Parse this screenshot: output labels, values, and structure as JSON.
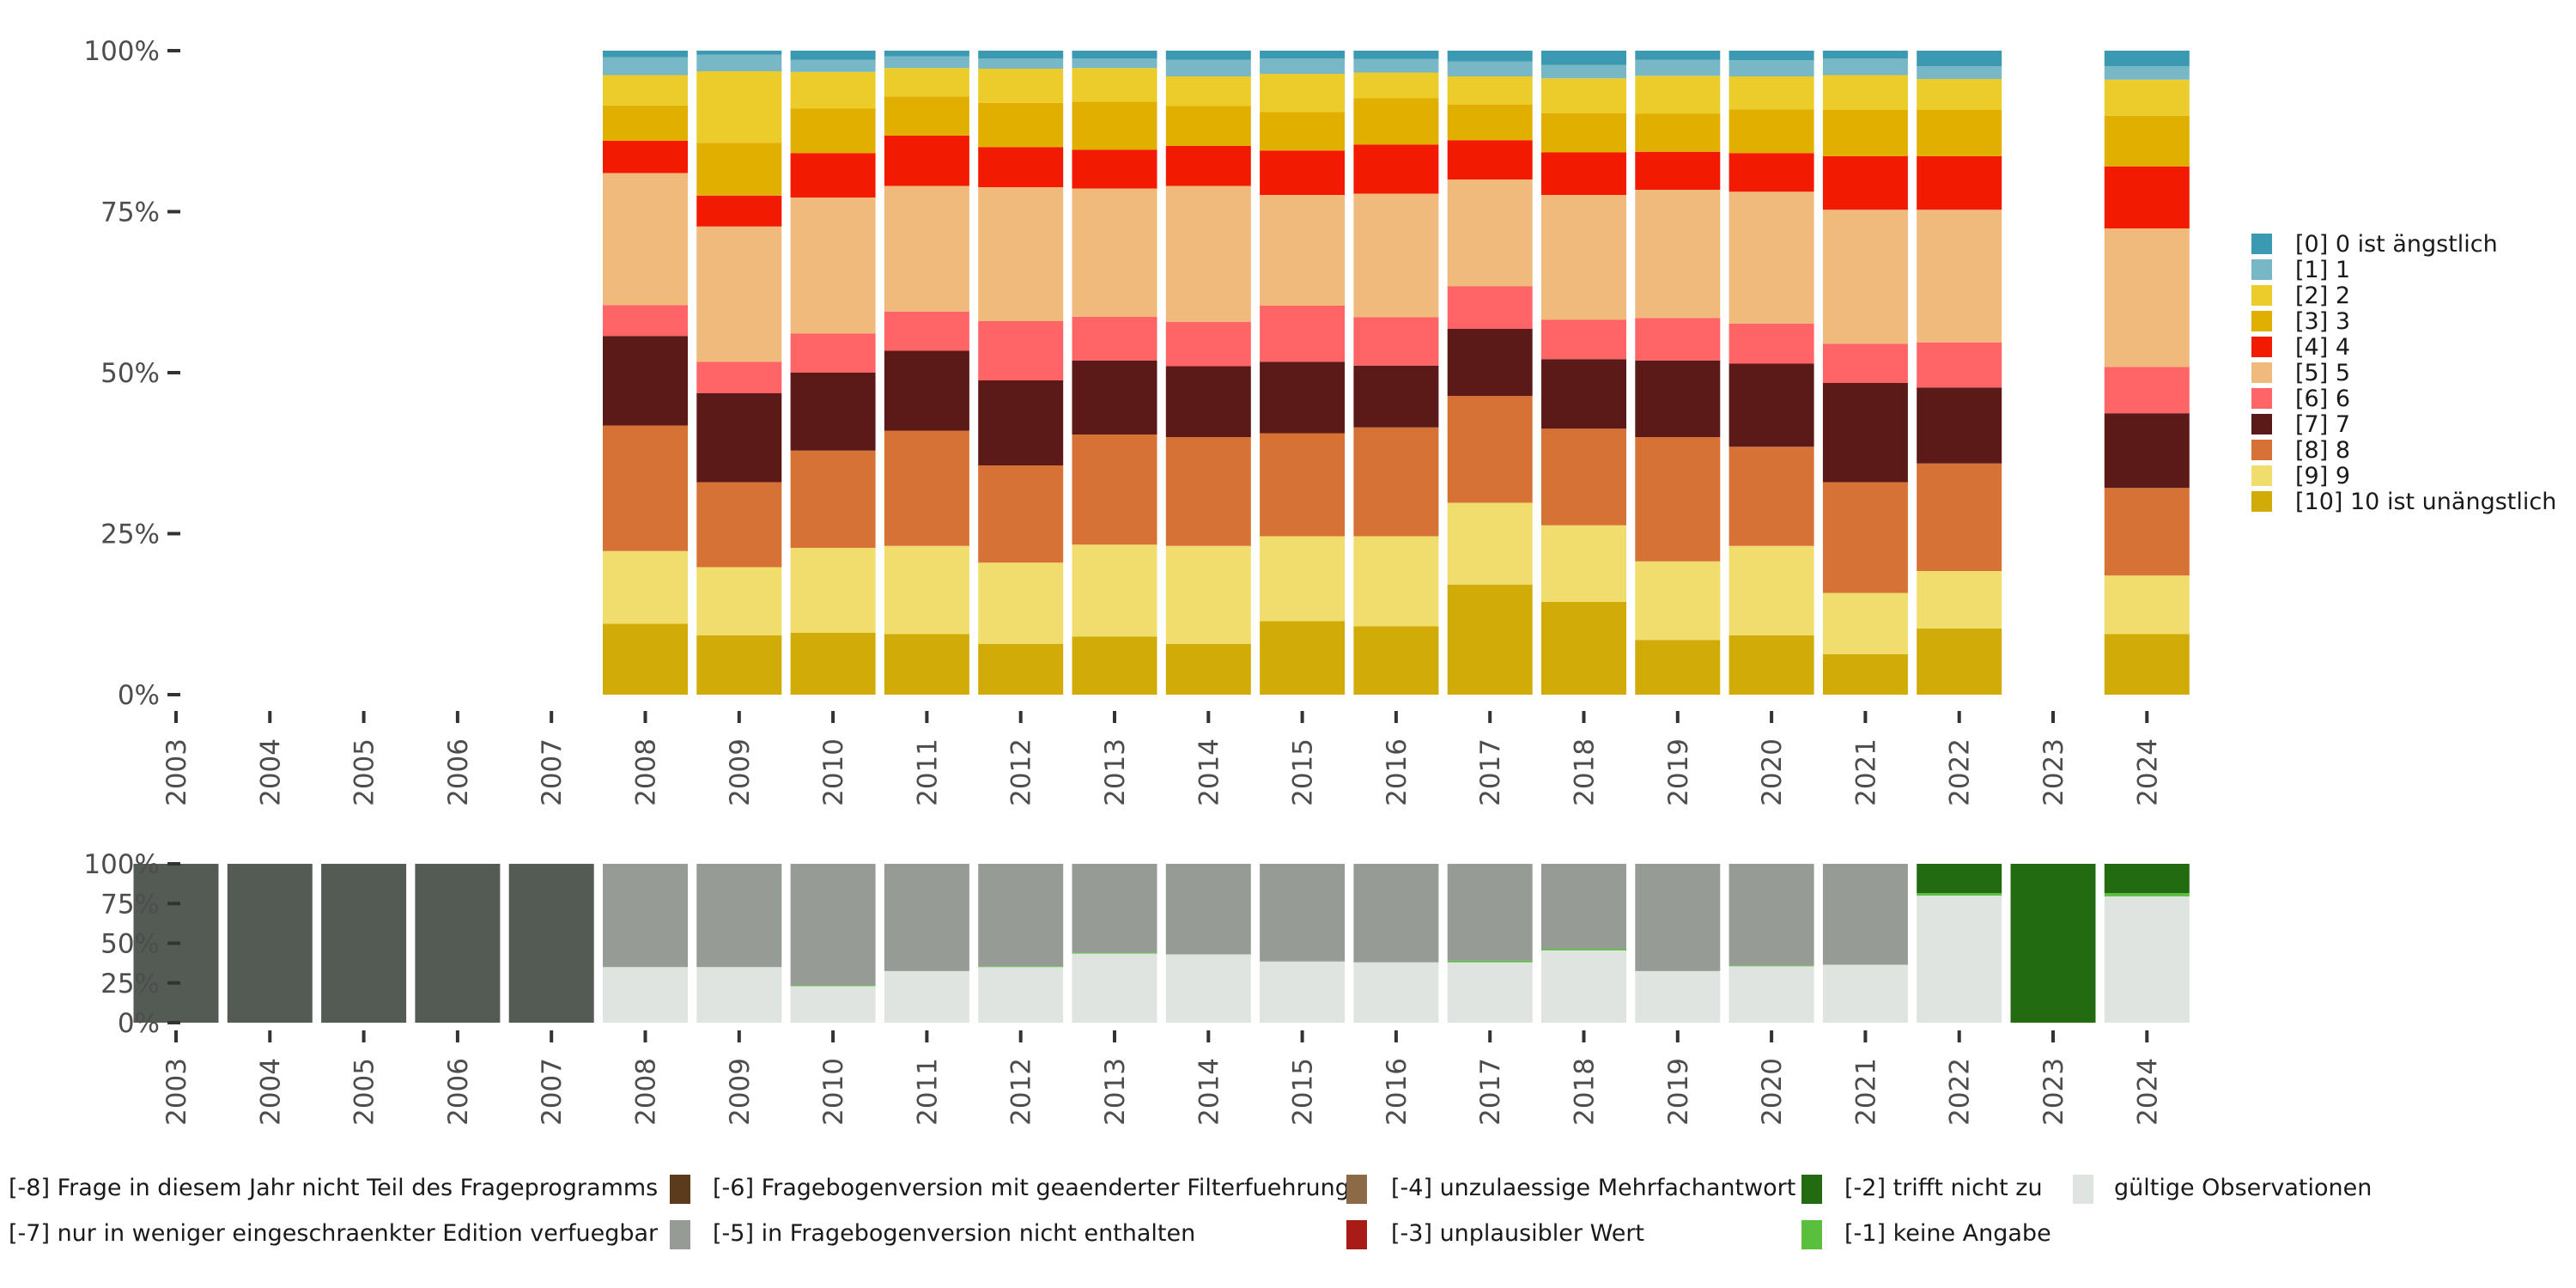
{
  "chart_data": [
    {
      "type": "bar",
      "stacked": true,
      "normalized": true,
      "title": "",
      "xlabel": "",
      "ylabel": "",
      "ylim": [
        0,
        100
      ],
      "y_ticks": [
        "0%",
        "25%",
        "50%",
        "75%",
        "100%"
      ],
      "grid": false,
      "legend_position": "right",
      "categories": [
        "2003",
        "2004",
        "2005",
        "2006",
        "2007",
        "2008",
        "2009",
        "2010",
        "2011",
        "2012",
        "2013",
        "2014",
        "2015",
        "2016",
        "2017",
        "2018",
        "2019",
        "2020",
        "2021",
        "2022",
        "2023",
        "2024"
      ],
      "series": [
        {
          "name": "[0] 0 ist ängstlich",
          "color": "#3B9AB2",
          "values": [
            null,
            null,
            null,
            null,
            null,
            1.0,
            0.6,
            1.4,
            0.9,
            1.2,
            1.2,
            1.4,
            1.2,
            1.3,
            1.7,
            2.2,
            1.4,
            1.5,
            1.2,
            2.4,
            null,
            2.4
          ]
        },
        {
          "name": "[1] 1",
          "color": "#78B7C5",
          "values": [
            null,
            null,
            null,
            null,
            null,
            2.8,
            2.6,
            1.9,
            1.8,
            1.6,
            1.5,
            2.6,
            2.4,
            2.1,
            2.3,
            2.1,
            2.5,
            2.5,
            2.6,
            2.0,
            null,
            2.1
          ]
        },
        {
          "name": "[2] 2",
          "color": "#EBCC2A",
          "values": [
            null,
            null,
            null,
            null,
            null,
            4.7,
            11.1,
            5.7,
            4.4,
            5.3,
            5.2,
            4.6,
            5.9,
            4.0,
            4.4,
            5.4,
            5.9,
            5.1,
            5.4,
            4.8,
            null,
            5.6
          ]
        },
        {
          "name": "[3] 3",
          "color": "#E1AF00",
          "values": [
            null,
            null,
            null,
            null,
            null,
            5.5,
            8.2,
            6.9,
            6.1,
            6.9,
            7.5,
            6.2,
            6.0,
            7.2,
            5.5,
            6.1,
            5.9,
            6.8,
            7.2,
            7.2,
            null,
            7.9
          ]
        },
        {
          "name": "[4] 4",
          "color": "#F21A00",
          "values": [
            null,
            null,
            null,
            null,
            null,
            5.0,
            4.8,
            6.9,
            7.8,
            6.2,
            6.0,
            6.2,
            6.9,
            7.6,
            6.1,
            6.6,
            5.9,
            6.0,
            8.3,
            8.3,
            null,
            9.6
          ]
        },
        {
          "name": "[5] 5",
          "color": "#F0BA7D",
          "values": [
            null,
            null,
            null,
            null,
            null,
            20.5,
            21.0,
            21.1,
            19.5,
            20.8,
            19.9,
            21.1,
            17.2,
            19.2,
            16.6,
            19.4,
            19.9,
            20.5,
            20.8,
            20.6,
            null,
            21.5
          ]
        },
        {
          "name": "[6] 6",
          "color": "#FF6466",
          "values": [
            null,
            null,
            null,
            null,
            null,
            4.8,
            4.9,
            6.1,
            6.1,
            9.2,
            6.8,
            6.9,
            8.7,
            7.5,
            6.6,
            6.1,
            6.6,
            6.2,
            6.1,
            7.0,
            null,
            7.2
          ]
        },
        {
          "name": "[7] 7",
          "color": "#5B1A18",
          "values": [
            null,
            null,
            null,
            null,
            null,
            13.9,
            13.8,
            12.1,
            12.4,
            13.2,
            11.5,
            11.0,
            11.1,
            9.6,
            10.4,
            10.8,
            11.9,
            12.9,
            15.4,
            11.8,
            null,
            11.6
          ]
        },
        {
          "name": "[8] 8",
          "color": "#D67236",
          "values": [
            null,
            null,
            null,
            null,
            null,
            19.5,
            13.2,
            15.1,
            17.9,
            15.1,
            17.1,
            16.9,
            16.0,
            16.9,
            16.6,
            15.0,
            19.3,
            15.4,
            17.2,
            16.7,
            null,
            13.6
          ]
        },
        {
          "name": "[9] 9",
          "color": "#F1DD6E",
          "values": [
            null,
            null,
            null,
            null,
            null,
            11.3,
            10.6,
            13.2,
            13.7,
            12.6,
            14.3,
            15.2,
            13.2,
            14.0,
            12.7,
            11.9,
            12.2,
            13.9,
            9.5,
            8.9,
            null,
            9.1
          ]
        },
        {
          "name": "[10] 10 ist unängstlich",
          "color": "#D1AB07",
          "values": [
            null,
            null,
            null,
            null,
            null,
            11.0,
            9.2,
            9.6,
            9.4,
            7.9,
            9.0,
            7.9,
            11.4,
            10.6,
            17.1,
            14.4,
            8.5,
            9.2,
            6.3,
            10.3,
            null,
            9.4
          ]
        }
      ]
    },
    {
      "type": "bar",
      "stacked": true,
      "normalized": true,
      "title": "",
      "xlabel": "",
      "ylabel": "",
      "ylim": [
        0,
        100
      ],
      "y_ticks": [
        "0%",
        "25%",
        "50%",
        "75%",
        "100%"
      ],
      "grid": false,
      "legend_position": "bottom",
      "categories": [
        "2003",
        "2004",
        "2005",
        "2006",
        "2007",
        "2008",
        "2009",
        "2010",
        "2011",
        "2012",
        "2013",
        "2014",
        "2015",
        "2016",
        "2017",
        "2018",
        "2019",
        "2020",
        "2021",
        "2022",
        "2023",
        "2024"
      ],
      "series": [
        {
          "name": "[-8] Frage in diesem Jahr nicht Teil des Frageprogramms",
          "color": "#545B55",
          "values": [
            100,
            100,
            100,
            100,
            100,
            0,
            0,
            0,
            0,
            0,
            0,
            0,
            0,
            0,
            0,
            0,
            0,
            0,
            0,
            0,
            0,
            0
          ]
        },
        {
          "name": "[-7] nur in weniger eingeschraenkter Edition verfuegbar",
          "color": "#979B95",
          "values": [
            0,
            0,
            0,
            0,
            0,
            65,
            65,
            76.5,
            67.5,
            64.5,
            56,
            57,
            61.5,
            62,
            61,
            53.5,
            67.5,
            64,
            63.5,
            0,
            0,
            0
          ]
        },
        {
          "name": "[-6] Fragebogenversion mit geaenderter Filterfuehrung",
          "color": "#5C3A1C",
          "values": [
            0,
            0,
            0,
            0,
            0,
            0,
            0,
            0,
            0,
            0,
            0,
            0,
            0,
            0,
            0,
            0,
            0,
            0,
            0,
            0,
            0,
            0
          ]
        },
        {
          "name": "[-5] in Fragebogenversion nicht enthalten",
          "color": "#979B95",
          "values": [
            0,
            0,
            0,
            0,
            0,
            0,
            0,
            0,
            0,
            0,
            0,
            0,
            0,
            0,
            0,
            0,
            0,
            0,
            0,
            0,
            0,
            0
          ]
        },
        {
          "name": "[-4] unzulaessige Mehrfachantwort",
          "color": "#8C6A48",
          "values": [
            0,
            0,
            0,
            0,
            0,
            0,
            0,
            0,
            0,
            0,
            0,
            0,
            0,
            0,
            0,
            0,
            0,
            0,
            0,
            0,
            0,
            0
          ]
        },
        {
          "name": "[-3] unplausibler Wert",
          "color": "#A81B16",
          "values": [
            0,
            0,
            0,
            0,
            0,
            0,
            0,
            0,
            0,
            0,
            0,
            0,
            0,
            0,
            0,
            0,
            0,
            0,
            0,
            0,
            0,
            0
          ]
        },
        {
          "name": "[-2] trifft nicht zu",
          "color": "#226B10",
          "values": [
            0,
            0,
            0,
            0,
            0,
            0,
            0,
            0,
            0,
            0,
            0,
            0,
            0,
            0,
            0,
            0,
            0,
            0,
            0,
            18.5,
            100,
            18.5
          ]
        },
        {
          "name": "[-1] keine Angabe",
          "color": "#5BBF3E",
          "values": [
            0,
            0,
            0,
            0,
            0,
            0,
            0,
            0.5,
            0,
            0.5,
            0.5,
            0,
            0,
            0,
            1,
            1,
            0,
            0.5,
            0,
            1.5,
            0,
            2
          ]
        },
        {
          "name": "gültige Observationen",
          "color": "#E0E4E0",
          "values": [
            0,
            0,
            0,
            0,
            0,
            35,
            35,
            23,
            32.5,
            35,
            43.5,
            43,
            38.5,
            38,
            38,
            45.5,
            32.5,
            35.5,
            36.5,
            80,
            0,
            79.5
          ]
        }
      ],
      "legend_order": [
        "[-8] Frage in diesem Jahr nicht Teil des Frageprogramms",
        "[-7] nur in weniger eingeschraenkter Edition verfuegbar",
        "[-6] Fragebogenversion mit geaenderter Filterfuehrung",
        "[-5] in Fragebogenversion nicht enthalten",
        "[-4] unzulaessige Mehrfachantwort",
        "[-3] unplausibler Wert",
        "[-2] trifft nicht zu",
        "[-1] keine Angabe",
        "gültige Observationen"
      ]
    }
  ]
}
